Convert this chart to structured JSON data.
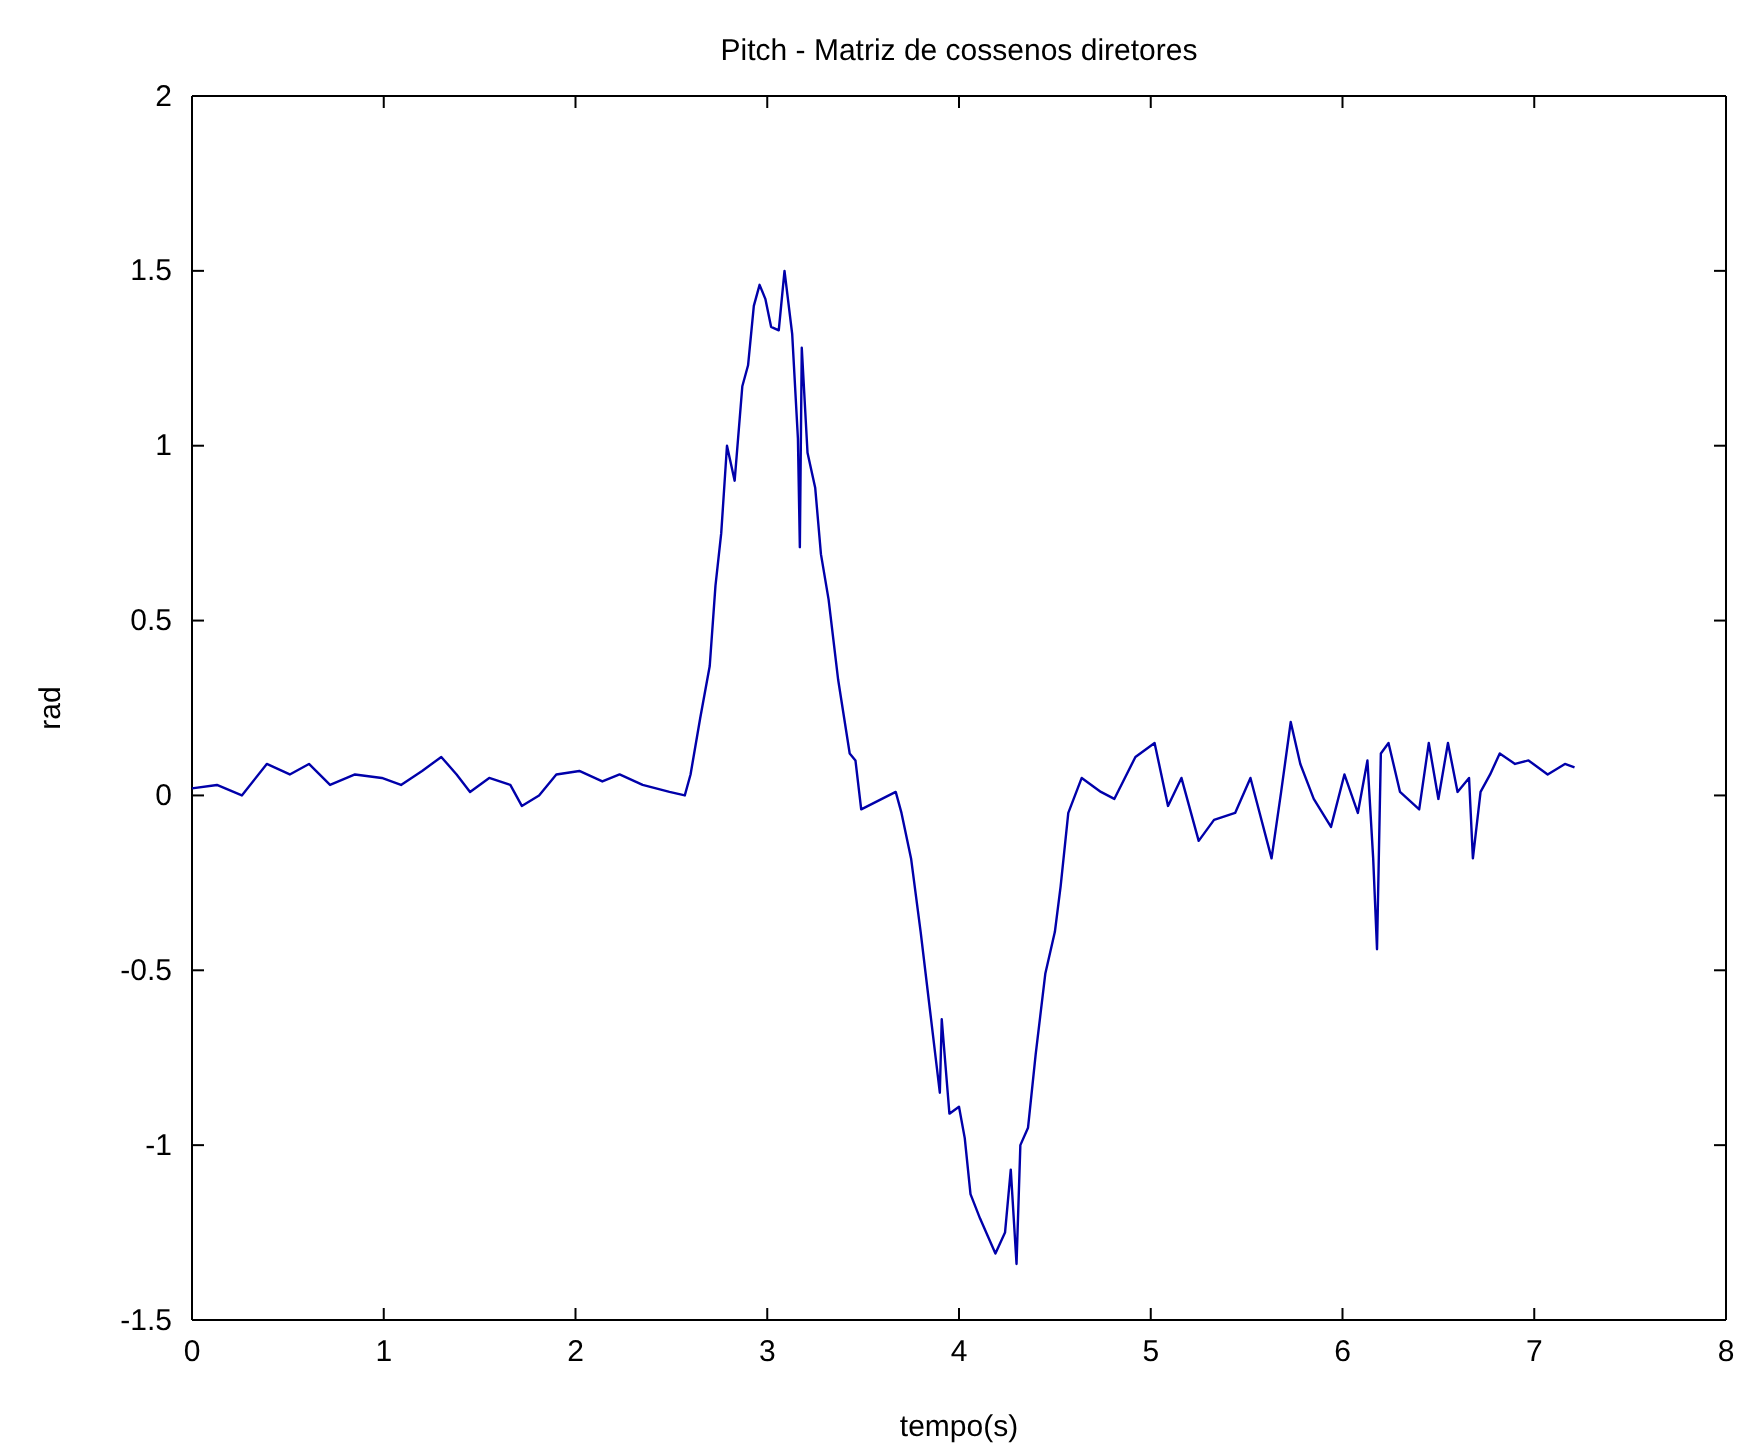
{
  "chart_data": {
    "type": "line",
    "title": "Pitch - Matriz de cossenos diretores",
    "xlabel": "tempo(s)",
    "ylabel": "rad",
    "xlim": [
      0,
      8
    ],
    "xticks": [
      0,
      1,
      2,
      3,
      4,
      5,
      6,
      7,
      8
    ],
    "ylim": [
      -1.5,
      2
    ],
    "yticks": [
      -1.5,
      -1,
      -0.5,
      0,
      0.5,
      1,
      1.5,
      2
    ],
    "grid": false,
    "series": [
      {
        "color": "#0000aa",
        "x": [
          0.0,
          0.13,
          0.26,
          0.39,
          0.51,
          0.61,
          0.72,
          0.85,
          0.99,
          1.09,
          1.2,
          1.3,
          1.38,
          1.45,
          1.55,
          1.66,
          1.72,
          1.81,
          1.9,
          2.02,
          2.14,
          2.23,
          2.35,
          2.49,
          2.57,
          2.6,
          2.65,
          2.7,
          2.73,
          2.76,
          2.79,
          2.83,
          2.87,
          2.9,
          2.93,
          2.96,
          2.99,
          3.02,
          3.06,
          3.09,
          3.13,
          3.16,
          3.17,
          3.18,
          3.21,
          3.25,
          3.28,
          3.32,
          3.37,
          3.43,
          3.46,
          3.49,
          3.67,
          3.7,
          3.75,
          3.8,
          3.85,
          3.9,
          3.91,
          3.95,
          4.0,
          4.03,
          4.06,
          4.11,
          4.19,
          4.24,
          4.27,
          4.3,
          4.32,
          4.36,
          4.4,
          4.45,
          4.5,
          4.53,
          4.57,
          4.64,
          4.74,
          4.81,
          4.92,
          5.02,
          5.09,
          5.16,
          5.25,
          5.33,
          5.44,
          5.52,
          5.63,
          5.68,
          5.73,
          5.78,
          5.85,
          5.94,
          6.01,
          6.08,
          6.13,
          6.16,
          6.18,
          6.2,
          6.24,
          6.3,
          6.4,
          6.45,
          6.5,
          6.55,
          6.6,
          6.66,
          6.68,
          6.72,
          6.77,
          6.82,
          6.9,
          6.97,
          7.07,
          7.16,
          7.21
        ],
        "values": [
          0.02,
          0.03,
          0.0,
          0.09,
          0.06,
          0.09,
          0.03,
          0.06,
          0.05,
          0.03,
          0.07,
          0.11,
          0.06,
          0.01,
          0.05,
          0.03,
          -0.03,
          0.0,
          0.06,
          0.07,
          0.04,
          0.06,
          0.03,
          0.01,
          0.0,
          0.06,
          0.22,
          0.37,
          0.6,
          0.75,
          1.0,
          0.9,
          1.17,
          1.23,
          1.4,
          1.46,
          1.42,
          1.34,
          1.33,
          1.5,
          1.32,
          1.02,
          0.71,
          1.28,
          0.98,
          0.88,
          0.69,
          0.56,
          0.33,
          0.12,
          0.1,
          -0.04,
          0.01,
          -0.05,
          -0.18,
          -0.39,
          -0.62,
          -0.85,
          -0.64,
          -0.91,
          -0.89,
          -0.98,
          -1.14,
          -1.21,
          -1.31,
          -1.25,
          -1.07,
          -1.34,
          -1.0,
          -0.95,
          -0.74,
          -0.51,
          -0.39,
          -0.26,
          -0.05,
          0.05,
          0.01,
          -0.01,
          0.11,
          0.15,
          -0.03,
          0.05,
          -0.13,
          -0.07,
          -0.05,
          0.05,
          -0.18,
          0.01,
          0.21,
          0.09,
          -0.01,
          -0.09,
          0.06,
          -0.05,
          0.1,
          -0.18,
          -0.44,
          0.12,
          0.15,
          0.01,
          -0.04,
          0.15,
          -0.01,
          0.15,
          0.01,
          0.05,
          -0.18,
          0.01,
          0.06,
          0.12,
          0.09,
          0.1,
          0.06,
          0.09,
          0.08
        ]
      }
    ]
  }
}
